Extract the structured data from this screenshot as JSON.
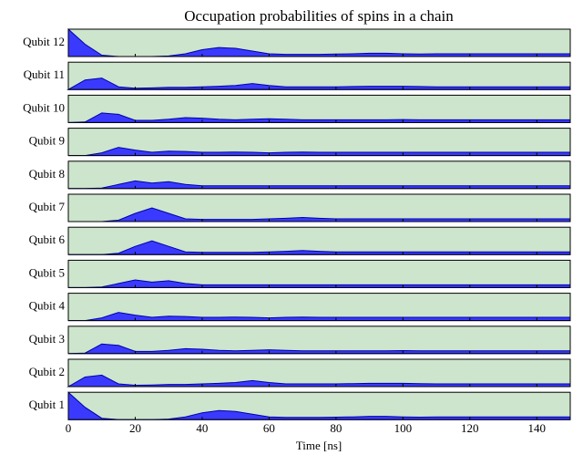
{
  "chart_data": {
    "type": "area",
    "title": "Occupation probabilities of spins in a chain",
    "xlabel": "Time [ns]",
    "x": [
      0,
      5,
      10,
      15,
      20,
      25,
      30,
      35,
      40,
      45,
      50,
      55,
      60,
      65,
      70,
      75,
      80,
      85,
      90,
      95,
      100,
      105,
      110,
      115,
      120,
      125,
      130,
      135,
      140,
      145,
      150
    ],
    "xlim": [
      0,
      150
    ],
    "xticks": [
      0,
      20,
      40,
      60,
      80,
      100,
      120,
      140
    ],
    "ylim": [
      0,
      1
    ],
    "background": "#cce5cc",
    "edgecolor": "#0000aa",
    "series": [
      {
        "name": "Qubit 12",
        "color": "#3a3aff",
        "values": [
          1.0,
          0.45,
          0.05,
          0,
          0,
          0,
          0.02,
          0.1,
          0.25,
          0.33,
          0.3,
          0.2,
          0.1,
          0.08,
          0.08,
          0.08,
          0.09,
          0.1,
          0.12,
          0.12,
          0.1,
          0.09,
          0.1,
          0.1,
          0.1,
          0.1,
          0.1,
          0.1,
          0.1,
          0.1,
          0.1
        ]
      },
      {
        "name": "Qubit 11",
        "color": "#3a3aff",
        "values": [
          0,
          0.35,
          0.42,
          0.1,
          0.05,
          0.06,
          0.08,
          0.08,
          0.1,
          0.12,
          0.15,
          0.22,
          0.15,
          0.1,
          0.1,
          0.1,
          0.1,
          0.11,
          0.12,
          0.12,
          0.12,
          0.11,
          0.1,
          0.1,
          0.1,
          0.1,
          0.1,
          0.1,
          0.1,
          0.1,
          0.1
        ]
      },
      {
        "name": "Qubit 10",
        "color": "#3a3aff",
        "values": [
          0,
          0.02,
          0.35,
          0.3,
          0.08,
          0.08,
          0.12,
          0.18,
          0.16,
          0.12,
          0.1,
          0.12,
          0.14,
          0.12,
          0.1,
          0.1,
          0.1,
          0.1,
          0.1,
          0.1,
          0.11,
          0.1,
          0.1,
          0.1,
          0.1,
          0.1,
          0.1,
          0.1,
          0.1,
          0.1,
          0.1
        ]
      },
      {
        "name": "Qubit 9",
        "color": "#3a3aff",
        "values": [
          0,
          0,
          0.1,
          0.3,
          0.2,
          0.12,
          0.16,
          0.15,
          0.12,
          0.12,
          0.13,
          0.12,
          0.1,
          0.12,
          0.13,
          0.12,
          0.12,
          0.12,
          0.12,
          0.12,
          0.12,
          0.12,
          0.12,
          0.12,
          0.12,
          0.12,
          0.12,
          0.12,
          0.12,
          0.12,
          0.12
        ]
      },
      {
        "name": "Qubit 8",
        "color": "#3a3aff",
        "values": [
          0,
          0,
          0.02,
          0.15,
          0.28,
          0.2,
          0.25,
          0.15,
          0.1,
          0.1,
          0.1,
          0.1,
          0.1,
          0.1,
          0.1,
          0.1,
          0.1,
          0.1,
          0.1,
          0.1,
          0.1,
          0.1,
          0.1,
          0.1,
          0.1,
          0.1,
          0.1,
          0.1,
          0.1,
          0.1,
          0.1
        ]
      },
      {
        "name": "Qubit 7",
        "color": "#3a3aff",
        "values": [
          0,
          0,
          0,
          0.05,
          0.3,
          0.5,
          0.3,
          0.1,
          0.08,
          0.08,
          0.08,
          0.08,
          0.1,
          0.12,
          0.15,
          0.12,
          0.1,
          0.1,
          0.1,
          0.1,
          0.1,
          0.1,
          0.1,
          0.1,
          0.1,
          0.1,
          0.1,
          0.1,
          0.1,
          0.1,
          0.1
        ]
      },
      {
        "name": "Qubit 6",
        "color": "#3a3aff",
        "values": [
          0,
          0,
          0,
          0.05,
          0.3,
          0.5,
          0.3,
          0.1,
          0.08,
          0.08,
          0.08,
          0.08,
          0.1,
          0.12,
          0.15,
          0.12,
          0.1,
          0.1,
          0.1,
          0.1,
          0.1,
          0.1,
          0.1,
          0.1,
          0.1,
          0.1,
          0.1,
          0.1,
          0.1,
          0.1,
          0.1
        ]
      },
      {
        "name": "Qubit 5",
        "color": "#3a3aff",
        "values": [
          0,
          0,
          0.02,
          0.15,
          0.28,
          0.2,
          0.25,
          0.15,
          0.1,
          0.1,
          0.1,
          0.1,
          0.1,
          0.1,
          0.1,
          0.1,
          0.1,
          0.1,
          0.1,
          0.1,
          0.1,
          0.1,
          0.1,
          0.1,
          0.1,
          0.1,
          0.1,
          0.1,
          0.1,
          0.1,
          0.1
        ]
      },
      {
        "name": "Qubit 4",
        "color": "#3a3aff",
        "values": [
          0,
          0,
          0.1,
          0.3,
          0.2,
          0.12,
          0.16,
          0.15,
          0.12,
          0.12,
          0.13,
          0.12,
          0.1,
          0.12,
          0.13,
          0.12,
          0.12,
          0.12,
          0.12,
          0.12,
          0.12,
          0.12,
          0.12,
          0.12,
          0.12,
          0.12,
          0.12,
          0.12,
          0.12,
          0.12,
          0.12
        ]
      },
      {
        "name": "Qubit 3",
        "color": "#3a3aff",
        "values": [
          0,
          0.02,
          0.35,
          0.3,
          0.08,
          0.08,
          0.12,
          0.18,
          0.16,
          0.12,
          0.1,
          0.12,
          0.14,
          0.12,
          0.1,
          0.1,
          0.1,
          0.1,
          0.1,
          0.1,
          0.11,
          0.1,
          0.1,
          0.1,
          0.1,
          0.1,
          0.1,
          0.1,
          0.1,
          0.1,
          0.1
        ]
      },
      {
        "name": "Qubit 2",
        "color": "#3a3aff",
        "values": [
          0,
          0.35,
          0.42,
          0.1,
          0.05,
          0.06,
          0.08,
          0.08,
          0.1,
          0.12,
          0.15,
          0.22,
          0.15,
          0.1,
          0.1,
          0.1,
          0.1,
          0.11,
          0.12,
          0.12,
          0.12,
          0.11,
          0.1,
          0.1,
          0.1,
          0.1,
          0.1,
          0.1,
          0.1,
          0.1,
          0.1
        ]
      },
      {
        "name": "Qubit 1",
        "color": "#3a3aff",
        "values": [
          1.0,
          0.45,
          0.05,
          0,
          0,
          0,
          0.02,
          0.1,
          0.25,
          0.33,
          0.3,
          0.2,
          0.1,
          0.08,
          0.08,
          0.08,
          0.09,
          0.1,
          0.12,
          0.12,
          0.1,
          0.09,
          0.1,
          0.1,
          0.1,
          0.1,
          0.1,
          0.1,
          0.1,
          0.1,
          0.1
        ]
      }
    ]
  }
}
